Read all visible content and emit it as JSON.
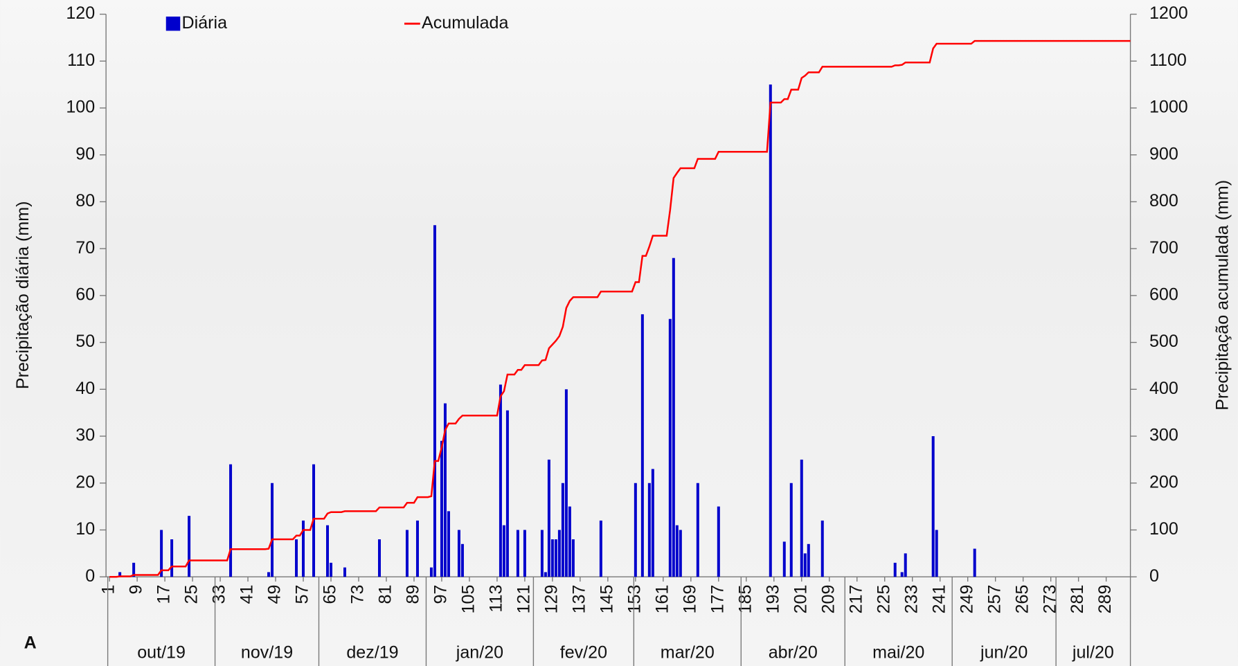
{
  "chart_data": {
    "type": "combo",
    "panel_label": "A",
    "y_label": "Precipitação diária (mm)",
    "y2_label": "Precipitação acumulada (mm)",
    "xlim": [
      0,
      296
    ],
    "xticks": [
      1,
      9,
      17,
      25,
      33,
      41,
      49,
      57,
      65,
      73,
      81,
      89,
      97,
      105,
      113,
      121,
      129,
      137,
      145,
      153,
      161,
      169,
      177,
      185,
      193,
      201,
      209,
      217,
      225,
      233,
      241,
      249,
      257,
      265,
      273,
      281,
      289
    ],
    "ylim": [
      0,
      120
    ],
    "yticks": [
      0,
      10,
      20,
      30,
      40,
      50,
      60,
      70,
      80,
      90,
      100,
      110,
      120
    ],
    "y2lim": [
      0,
      1200
    ],
    "y2ticks": [
      0,
      100,
      200,
      300,
      400,
      500,
      600,
      700,
      800,
      900,
      1000,
      1100,
      1200
    ],
    "months": [
      {
        "label": "out/19",
        "start": 1
      },
      {
        "label": "nov/19",
        "start": 32
      },
      {
        "label": "dez/19",
        "start": 62
      },
      {
        "label": "jan/20",
        "start": 93
      },
      {
        "label": "fev/20",
        "start": 124
      },
      {
        "label": "mar/20",
        "start": 153
      },
      {
        "label": "abr/20",
        "start": 184
      },
      {
        "label": "mai/20",
        "start": 214
      },
      {
        "label": "jun/20",
        "start": 245
      },
      {
        "label": "jul/20",
        "start": 275
      }
    ],
    "series": [
      {
        "name": "Diária",
        "type": "bar",
        "color": "#0000cc",
        "x": [
          4,
          8,
          16,
          19,
          24,
          36,
          47,
          48,
          55,
          57,
          60,
          64,
          65,
          69,
          79,
          87,
          90,
          94,
          95,
          97,
          98,
          99,
          102,
          103,
          114,
          115,
          116,
          119,
          121,
          126,
          127,
          128,
          129,
          130,
          131,
          132,
          133,
          134,
          135,
          143,
          153,
          155,
          157,
          158,
          163,
          164,
          165,
          166,
          171,
          177,
          192,
          196,
          198,
          201,
          202,
          203,
          207,
          228,
          230,
          231,
          239,
          240,
          251
        ],
        "values": [
          1,
          3,
          10,
          8,
          13,
          24,
          1,
          20,
          8,
          12,
          24,
          11,
          3,
          2,
          8,
          10,
          12,
          2,
          75,
          29,
          37,
          14,
          10,
          7,
          41,
          11,
          35.5,
          10,
          10,
          10,
          1,
          25,
          8,
          8,
          10,
          20,
          40,
          15,
          8,
          12,
          20,
          56,
          20,
          23,
          55,
          68,
          11,
          10,
          20,
          15,
          105,
          7.5,
          20,
          25,
          5,
          7,
          12,
          3,
          1,
          5,
          30,
          10,
          6
        ]
      },
      {
        "name": "Acumulada",
        "type": "line",
        "axis": "y2",
        "color": "#ff0000",
        "x": [
          1,
          3,
          4,
          7,
          8,
          15,
          16,
          18,
          19,
          23,
          24,
          35,
          36,
          46,
          47,
          48,
          54,
          55,
          56,
          57,
          59,
          60,
          63,
          64,
          65,
          68,
          69,
          78,
          79,
          86,
          87,
          89,
          90,
          93,
          94,
          95,
          96,
          97,
          98,
          99,
          101,
          102,
          103,
          113,
          114,
          115,
          116,
          118,
          119,
          120,
          121,
          125,
          126,
          127,
          128,
          129,
          130,
          131,
          132,
          133,
          134,
          135,
          142,
          143,
          152,
          153,
          154,
          155,
          156,
          157,
          158,
          162,
          163,
          164,
          165,
          166,
          170,
          171,
          176,
          177,
          191,
          192,
          195,
          196,
          197,
          198,
          200,
          201,
          202,
          203,
          206,
          207,
          227,
          228,
          229,
          230,
          231,
          238,
          239,
          240,
          250,
          251,
          296
        ],
        "values": [
          0,
          0,
          1,
          1,
          4,
          4,
          14,
          14,
          22,
          22,
          35,
          35,
          59,
          59,
          60,
          80,
          80,
          88,
          88,
          100,
          100,
          124,
          124,
          135,
          138,
          138,
          140,
          140,
          148,
          148,
          158,
          158,
          170,
          170,
          172,
          247,
          247,
          276,
          313,
          327,
          327,
          337,
          344,
          344,
          385,
          396,
          431.5,
          431.5,
          441.5,
          441.5,
          451.5,
          451.5,
          461.5,
          462.5,
          487.5,
          495.5,
          503.5,
          513.5,
          533.5,
          573.5,
          588.5,
          596.5,
          596.5,
          608.5,
          608.5,
          628.5,
          628.5,
          684.5,
          684.5,
          704.5,
          727.5,
          727.5,
          782.5,
          850.5,
          861.5,
          871.5,
          871.5,
          891.5,
          891.5,
          906.5,
          906.5,
          1011.5,
          1011.5,
          1019,
          1019,
          1039,
          1039,
          1064,
          1069,
          1076,
          1076,
          1088,
          1088,
          1091,
          1091,
          1092,
          1097,
          1097,
          1127,
          1137,
          1137,
          1143,
          1143
        ]
      }
    ]
  }
}
